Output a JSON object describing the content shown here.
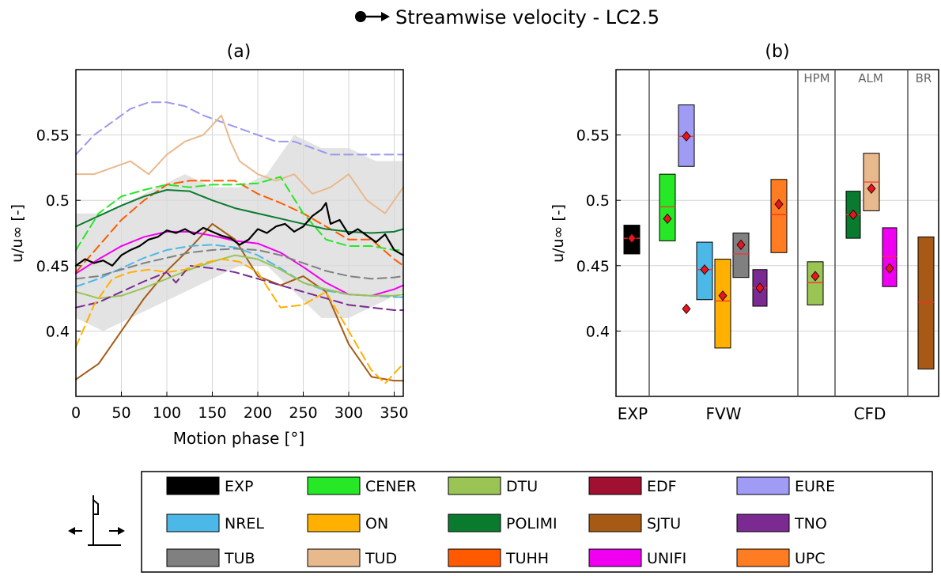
{
  "figure": {
    "title": "Streamwise velocity - LC2.5",
    "title_marker": "arrow-icon"
  },
  "chart_data": [
    {
      "type": "line",
      "panel_label": "(a)",
      "xlabel": "Motion phase [°]",
      "ylabel": "u/u∞ [-]",
      "xlim": [
        0,
        360
      ],
      "ylim": [
        0.35,
        0.6
      ],
      "xticks": [
        0,
        50,
        100,
        150,
        200,
        250,
        300,
        350
      ],
      "yticks": [
        0.4,
        0.45,
        0.5,
        0.55
      ],
      "ytick_labels": [
        "0.4",
        "0.45",
        "0.5",
        "0.55"
      ],
      "grid": true,
      "exp_band": {
        "name": "EXP",
        "color": "#d9d9d9",
        "x": [
          0,
          30,
          60,
          90,
          120,
          150,
          180,
          210,
          240,
          270,
          300,
          330,
          360
        ],
        "upper": [
          0.49,
          0.49,
          0.5,
          0.51,
          0.52,
          0.51,
          0.51,
          0.52,
          0.55,
          0.54,
          0.54,
          0.53,
          0.53
        ],
        "lower": [
          0.41,
          0.4,
          0.41,
          0.42,
          0.43,
          0.44,
          0.45,
          0.45,
          0.43,
          0.41,
          0.41,
          0.42,
          0.43
        ]
      },
      "series": [
        {
          "name": "EURE",
          "color": "#9b98f0",
          "dash": true,
          "width": 2,
          "x": [
            0,
            20,
            40,
            60,
            80,
            100,
            120,
            140,
            160,
            180,
            200,
            220,
            240,
            260,
            280,
            300,
            320,
            340,
            360
          ],
          "values": [
            0.535,
            0.55,
            0.56,
            0.57,
            0.575,
            0.575,
            0.572,
            0.565,
            0.56,
            0.555,
            0.55,
            0.545,
            0.545,
            0.54,
            0.535,
            0.535,
            0.535,
            0.535,
            0.535
          ]
        },
        {
          "name": "TUD",
          "color": "#e8b98c",
          "dash": false,
          "width": 2,
          "x": [
            0,
            20,
            40,
            60,
            80,
            100,
            120,
            140,
            160,
            170,
            180,
            200,
            220,
            240,
            260,
            280,
            300,
            320,
            340,
            360
          ],
          "values": [
            0.52,
            0.52,
            0.525,
            0.53,
            0.52,
            0.535,
            0.545,
            0.55,
            0.565,
            0.545,
            0.53,
            0.52,
            0.515,
            0.52,
            0.505,
            0.51,
            0.52,
            0.5,
            0.49,
            0.51
          ]
        },
        {
          "name": "TUHH",
          "color": "#ff5a00",
          "dash": true,
          "width": 2,
          "x": [
            0,
            25,
            50,
            75,
            100,
            125,
            150,
            175,
            200,
            225,
            250,
            275,
            300,
            325,
            350,
            360
          ],
          "values": [
            0.445,
            0.465,
            0.485,
            0.5,
            0.512,
            0.515,
            0.515,
            0.515,
            0.505,
            0.498,
            0.49,
            0.48,
            0.47,
            0.47,
            0.455,
            0.45
          ]
        },
        {
          "name": "CENER",
          "color": "#26e826",
          "dash": true,
          "width": 2,
          "x": [
            0,
            25,
            50,
            75,
            100,
            125,
            150,
            175,
            200,
            225,
            250,
            275,
            300,
            325,
            350,
            360
          ],
          "values": [
            0.462,
            0.49,
            0.503,
            0.508,
            0.512,
            0.51,
            0.512,
            0.512,
            0.513,
            0.518,
            0.49,
            0.47,
            0.465,
            0.465,
            0.462,
            0.462
          ]
        },
        {
          "name": "POLIMI",
          "color": "#0a7a2e",
          "dash": false,
          "width": 2,
          "x": [
            0,
            25,
            50,
            75,
            100,
            125,
            150,
            175,
            200,
            225,
            250,
            275,
            300,
            325,
            350,
            360
          ],
          "values": [
            0.48,
            0.488,
            0.496,
            0.503,
            0.508,
            0.507,
            0.5,
            0.494,
            0.49,
            0.486,
            0.482,
            0.478,
            0.476,
            0.475,
            0.476,
            0.478
          ]
        },
        {
          "name": "SJTU",
          "color": "#a65a15",
          "dash": false,
          "width": 2,
          "x": [
            0,
            25,
            50,
            75,
            100,
            125,
            150,
            175,
            200,
            225,
            250,
            275,
            300,
            325,
            350,
            360
          ],
          "values": [
            0.363,
            0.375,
            0.4,
            0.425,
            0.446,
            0.463,
            0.482,
            0.47,
            0.442,
            0.435,
            0.442,
            0.43,
            0.39,
            0.365,
            0.362,
            0.362
          ]
        },
        {
          "name": "UNIFI",
          "color": "#f000f0",
          "dash": false,
          "width": 2,
          "x": [
            0,
            25,
            50,
            75,
            100,
            125,
            150,
            175,
            200,
            225,
            250,
            275,
            300,
            325,
            350,
            360
          ],
          "values": [
            0.444,
            0.455,
            0.465,
            0.472,
            0.476,
            0.476,
            0.473,
            0.469,
            0.467,
            0.46,
            0.449,
            0.437,
            0.428,
            0.427,
            0.432,
            0.435
          ]
        },
        {
          "name": "NREL",
          "color": "#4cb8e8",
          "dash": true,
          "width": 2,
          "x": [
            0,
            25,
            50,
            75,
            100,
            125,
            150,
            175,
            200,
            225,
            250,
            275,
            300,
            325,
            350,
            360
          ],
          "values": [
            0.434,
            0.44,
            0.448,
            0.456,
            0.462,
            0.465,
            0.466,
            0.464,
            0.458,
            0.448,
            0.437,
            0.431,
            0.428,
            0.427,
            0.426,
            0.426
          ]
        },
        {
          "name": "TUB",
          "color": "#808080",
          "dash": true,
          "width": 2,
          "x": [
            0,
            25,
            50,
            75,
            100,
            125,
            150,
            175,
            200,
            225,
            250,
            275,
            300,
            325,
            350,
            360
          ],
          "values": [
            0.44,
            0.442,
            0.447,
            0.452,
            0.456,
            0.46,
            0.462,
            0.463,
            0.462,
            0.458,
            0.452,
            0.446,
            0.442,
            0.44,
            0.441,
            0.442
          ]
        },
        {
          "name": "DTU",
          "color": "#9ac454",
          "dash": false,
          "width": 2,
          "x": [
            0,
            25,
            50,
            75,
            100,
            125,
            150,
            175,
            200,
            225,
            250,
            275,
            300,
            325,
            350,
            360
          ],
          "values": [
            0.43,
            0.425,
            0.427,
            0.433,
            0.44,
            0.447,
            0.453,
            0.458,
            0.455,
            0.447,
            0.437,
            0.432,
            0.428,
            0.427,
            0.427,
            0.428
          ]
        },
        {
          "name": "TNO",
          "color": "#7a2a90",
          "dash": true,
          "width": 2,
          "x": [
            0,
            25,
            50,
            75,
            100,
            110,
            125,
            150,
            175,
            200,
            225,
            250,
            275,
            300,
            325,
            350,
            360
          ],
          "values": [
            0.418,
            0.422,
            0.43,
            0.438,
            0.445,
            0.437,
            0.45,
            0.448,
            0.445,
            0.44,
            0.435,
            0.43,
            0.425,
            0.42,
            0.418,
            0.416,
            0.416
          ]
        },
        {
          "name": "ON",
          "color": "#ffb000",
          "dash": true,
          "width": 2,
          "x": [
            0,
            20,
            40,
            60,
            80,
            100,
            120,
            140,
            160,
            180,
            200,
            225,
            250,
            275,
            300,
            325,
            340,
            360
          ],
          "values": [
            0.388,
            0.42,
            0.44,
            0.445,
            0.447,
            0.445,
            0.447,
            0.452,
            0.455,
            0.453,
            0.445,
            0.418,
            0.42,
            0.43,
            0.4,
            0.37,
            0.36,
            0.375
          ]
        },
        {
          "name": "EXP",
          "color": "#000000",
          "dash": false,
          "width": 2.2,
          "x": [
            0,
            10,
            20,
            30,
            40,
            50,
            60,
            70,
            80,
            90,
            100,
            110,
            120,
            130,
            140,
            150,
            160,
            170,
            180,
            190,
            200,
            210,
            220,
            230,
            240,
            250,
            260,
            270,
            275,
            280,
            290,
            300,
            310,
            320,
            330,
            340,
            350,
            360
          ],
          "values": [
            0.45,
            0.455,
            0.452,
            0.454,
            0.45,
            0.458,
            0.462,
            0.465,
            0.47,
            0.472,
            0.477,
            0.475,
            0.478,
            0.474,
            0.479,
            0.476,
            0.473,
            0.471,
            0.466,
            0.47,
            0.478,
            0.475,
            0.48,
            0.482,
            0.476,
            0.48,
            0.488,
            0.493,
            0.498,
            0.482,
            0.485,
            0.474,
            0.478,
            0.473,
            0.468,
            0.474,
            0.462,
            0.458
          ]
        }
      ]
    },
    {
      "type": "box",
      "panel_label": "(b)",
      "ylabel": "u/u∞ [-]",
      "ylim": [
        0.35,
        0.6
      ],
      "yticks": [
        0.4,
        0.45,
        0.5,
        0.55
      ],
      "ytick_labels": [
        "0.4",
        "0.45",
        "0.5",
        "0.55"
      ],
      "grid": true,
      "groups_bottom": [
        "EXP",
        "FVW",
        "CFD"
      ],
      "groups_top": [
        "HPM",
        "ALM",
        "BR"
      ],
      "boxes": [
        {
          "name": "EXP",
          "color": "#000000",
          "low": 0.459,
          "high": 0.481,
          "median": 0.471,
          "mean": 0.471
        },
        {
          "name": "CENER",
          "color": "#26e826",
          "low": 0.469,
          "high": 0.52,
          "median": 0.495,
          "mean": 0.486
        },
        {
          "name": "EDF",
          "color": "#a01030",
          "low": null,
          "high": null,
          "median": null,
          "mean": 0.417
        },
        {
          "name": "EURE",
          "color": "#a09cf5",
          "low": 0.526,
          "high": 0.573,
          "median": 0.549,
          "mean": 0.549
        },
        {
          "name": "NREL",
          "color": "#4cb8e8",
          "low": 0.424,
          "high": 0.468,
          "median": 0.447,
          "mean": 0.447
        },
        {
          "name": "ON",
          "color": "#ffb000",
          "low": 0.387,
          "high": 0.455,
          "median": 0.423,
          "mean": 0.427
        },
        {
          "name": "TUB",
          "color": "#808080",
          "low": 0.441,
          "high": 0.475,
          "median": 0.459,
          "mean": 0.466
        },
        {
          "name": "TNO",
          "color": "#7a2a90",
          "low": 0.419,
          "high": 0.447,
          "median": 0.433,
          "mean": 0.433
        },
        {
          "name": "UPC",
          "color": "#ff7c22",
          "low": 0.46,
          "high": 0.516,
          "median": 0.489,
          "mean": 0.497
        },
        {
          "name": "DTU",
          "color": "#9ac454",
          "low": 0.42,
          "high": 0.453,
          "median": 0.437,
          "mean": 0.442
        },
        {
          "name": "POLIMI",
          "color": "#0a7a2e",
          "low": 0.471,
          "high": 0.507,
          "median": 0.489,
          "mean": 0.489
        },
        {
          "name": "TUD",
          "color": "#e8b98c",
          "low": 0.492,
          "high": 0.536,
          "median": 0.514,
          "mean": 0.509
        },
        {
          "name": "UNIFI",
          "color": "#f000f0",
          "low": 0.434,
          "high": 0.479,
          "median": 0.457,
          "mean": 0.448
        },
        {
          "name": "SJTU",
          "color": "#a65a15",
          "low": 0.371,
          "high": 0.472,
          "median": 0.422,
          "mean": null
        }
      ]
    }
  ],
  "legend": {
    "icon": "turbine-motion-icon",
    "items": [
      {
        "label": "EXP",
        "color": "#000000"
      },
      {
        "label": "CENER",
        "color": "#26e826"
      },
      {
        "label": "DTU",
        "color": "#9ac454"
      },
      {
        "label": "EDF",
        "color": "#a01030"
      },
      {
        "label": "EURE",
        "color": "#a09cf5"
      },
      {
        "label": "NREL",
        "color": "#4cb8e8"
      },
      {
        "label": "ON",
        "color": "#ffb000"
      },
      {
        "label": "POLIMI",
        "color": "#0a7a2e"
      },
      {
        "label": "SJTU",
        "color": "#a65a15"
      },
      {
        "label": "TNO",
        "color": "#7a2a90"
      },
      {
        "label": "TUB",
        "color": "#808080"
      },
      {
        "label": "TUD",
        "color": "#e8b98c"
      },
      {
        "label": "TUHH",
        "color": "#ff5a00"
      },
      {
        "label": "UNIFI",
        "color": "#f000f0"
      },
      {
        "label": "UPC",
        "color": "#ff7c22"
      }
    ]
  }
}
